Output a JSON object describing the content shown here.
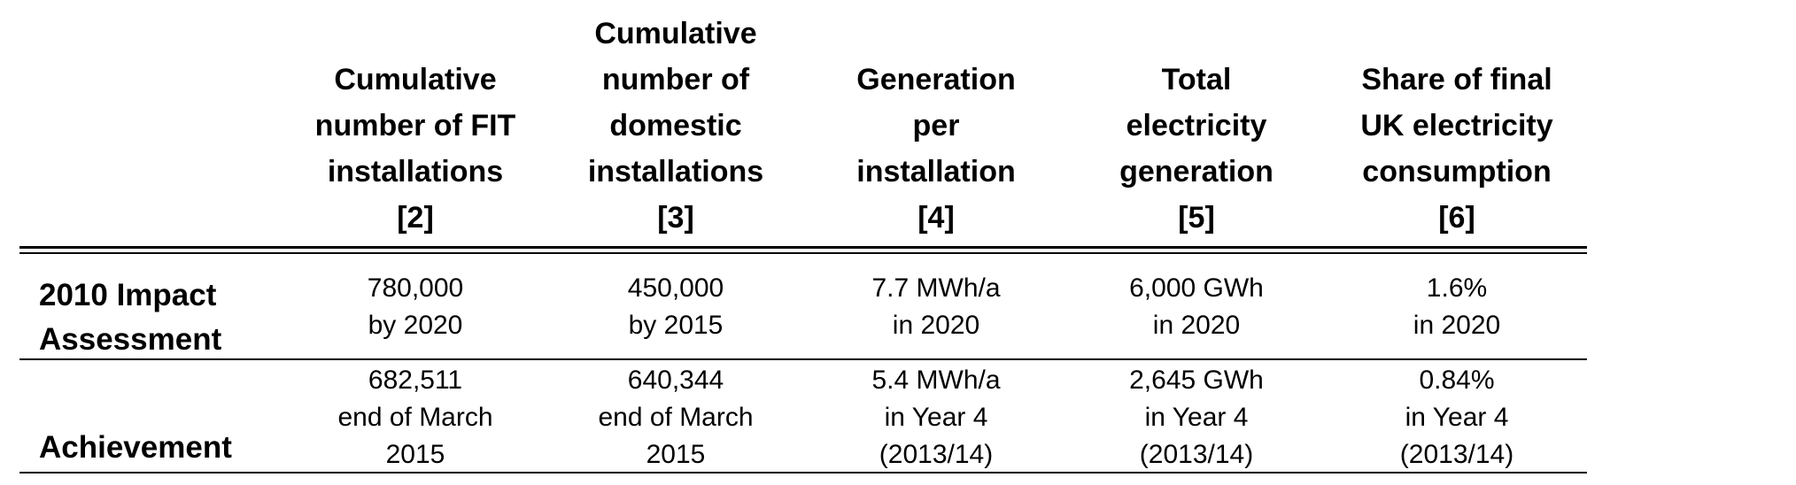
{
  "table": {
    "columns": [
      "Cumulative\nnumber of FIT\ninstallations\n[2]",
      "Cumulative\nnumber of\ndomestic\ninstallations\n[3]",
      "Generation\nper\ninstallation\n[4]",
      "Total\nelectricity\ngeneration\n[5]",
      "Share of final\nUK electricity\nconsumption\n[6]"
    ],
    "rows": [
      {
        "label": "2010 Impact\nAssessment",
        "cells": [
          "780,000\nby 2020",
          "450,000\nby 2015",
          "7.7 MWh/a\nin 2020",
          "6,000 GWh\nin 2020",
          "1.6%\nin 2020"
        ]
      },
      {
        "label": "Achievement",
        "cells": [
          "682,511\nend of March\n2015",
          "640,344\nend of March\n2015",
          "5.4 MWh/a\nin Year 4\n(2013/14)",
          "2,645 GWh\nin Year 4\n(2013/14)",
          "0.84%\nin Year 4\n(2013/14)"
        ]
      }
    ]
  }
}
